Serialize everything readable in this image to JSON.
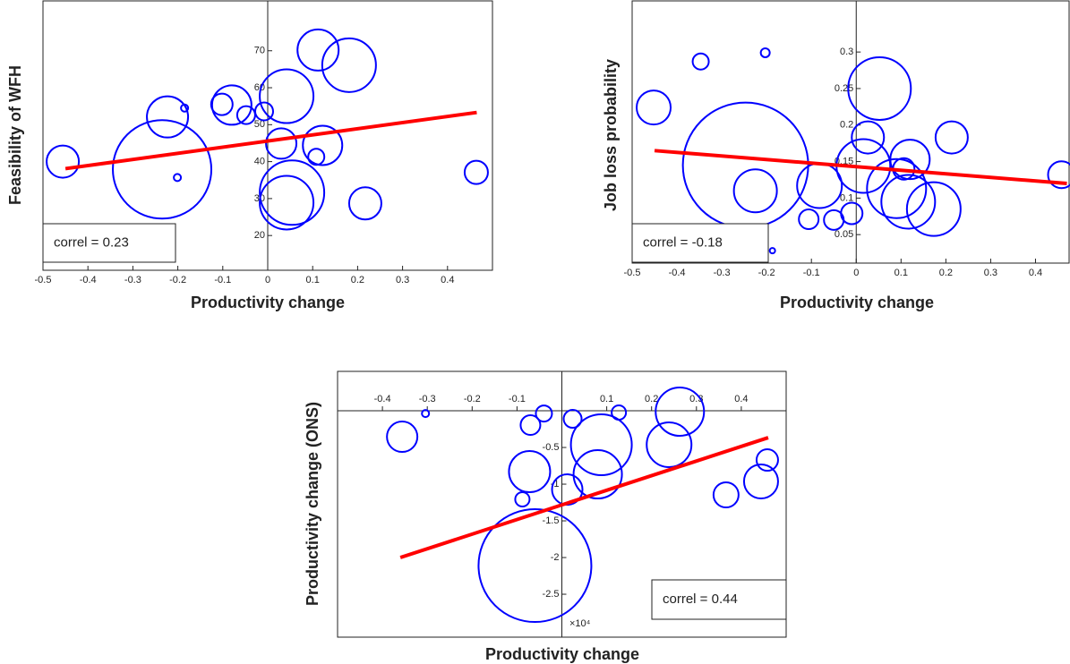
{
  "chart_data": [
    {
      "type": "scatter",
      "xlabel": "Productivity change",
      "ylabel": "Feasibility of WFH",
      "annotation": "correl = 0.23",
      "x": [
        -0.456,
        -0.235,
        -0.223,
        -0.185,
        -0.201,
        -0.102,
        -0.08,
        -0.048,
        -0.008,
        0.042,
        0.03,
        0.042,
        0.054,
        0.112,
        0.181,
        0.122,
        0.108,
        0.217,
        0.464,
        -0.347
      ],
      "y": [
        40.0,
        37.9,
        52.1,
        54.5,
        35.7,
        55.5,
        55.3,
        52.6,
        53.6,
        57.7,
        44.9,
        28.9,
        31.6,
        70.2,
        66.1,
        44.4,
        41.3,
        28.7,
        37.1,
        17.3
      ],
      "sizes": [
        18,
        55,
        23,
        4,
        4,
        12,
        22,
        10,
        10,
        30,
        17,
        30,
        36,
        23,
        30,
        22,
        9,
        18,
        13,
        9
      ],
      "fit_line": {
        "x": [
          -0.45,
          0.465
        ],
        "y": [
          38.1,
          53.3
        ]
      },
      "xlim": [
        -0.5,
        0.5
      ],
      "ylim": [
        10.6,
        83.5
      ],
      "xticks": [
        -0.5,
        -0.4,
        -0.3,
        -0.2,
        -0.1,
        0,
        0.1,
        0.2,
        0.3,
        0.4
      ],
      "yticks": [
        20,
        30,
        40,
        50,
        60,
        70
      ],
      "color": "#0000ff",
      "fit_color": "#ff0000"
    },
    {
      "type": "scatter",
      "xlabel": "Productivity change",
      "ylabel": "Job loss probability",
      "annotation": "correl = -0.18",
      "x": [
        -0.452,
        -0.347,
        -0.203,
        -0.187,
        -0.247,
        -0.225,
        0.052,
        0.026,
        0.016,
        -0.082,
        -0.106,
        -0.05,
        -0.01,
        0.09,
        0.106,
        0.12,
        0.116,
        0.173,
        0.213,
        0.458
      ],
      "y": [
        0.224,
        0.287,
        0.299,
        0.028,
        0.145,
        0.11,
        0.25,
        0.183,
        0.144,
        0.117,
        0.071,
        0.07,
        0.079,
        0.113,
        0.14,
        0.153,
        0.095,
        0.085,
        0.183,
        0.132
      ],
      "sizes": [
        19,
        9,
        5,
        3,
        70,
        24,
        35,
        18,
        30,
        25,
        11,
        11,
        12,
        33,
        12,
        22,
        30,
        30,
        18,
        15
      ],
      "fit_line": {
        "x": [
          -0.45,
          0.47
        ],
        "y": [
          0.165,
          0.12
        ]
      },
      "xlim": [
        -0.5,
        0.475
      ],
      "ylim": [
        0.011,
        0.37
      ],
      "xticks": [
        -0.5,
        -0.4,
        -0.3,
        -0.2,
        -0.1,
        0,
        0.1,
        0.2,
        0.3,
        0.4
      ],
      "yticks": [
        0.05,
        0.1,
        0.15,
        0.2,
        0.25,
        0.3
      ],
      "color": "#0000ff",
      "fit_color": "#ff0000"
    },
    {
      "type": "scatter",
      "xlabel": "Productivity change",
      "ylabel": "Productivity change (ONS)",
      "annotation": "correl = 0.44",
      "y_multiplier": "×10⁴",
      "x": [
        -0.356,
        -0.304,
        -0.07,
        -0.04,
        0.024,
        0.127,
        0.263,
        0.239,
        0.088,
        0.08,
        -0.072,
        -0.088,
        0.012,
        -0.06,
        0.366,
        0.444,
        0.458
      ],
      "y": [
        -0.354,
        -0.037,
        -0.195,
        -0.037,
        -0.11,
        -0.024,
        -0.012,
        -0.463,
        -0.463,
        -0.866,
        -0.829,
        -1.207,
        -1.073,
        -2.11,
        -1.146,
        -0.963,
        -0.671
      ],
      "sizes": [
        17,
        4,
        11,
        9,
        10,
        8,
        27,
        25,
        34,
        27,
        23,
        8,
        17,
        63,
        14,
        19,
        12
      ],
      "fit_line": {
        "x": [
          -0.36,
          0.46
        ],
        "y": [
          -2.0,
          -0.366
        ]
      },
      "xlim": [
        -0.5,
        0.5
      ],
      "ylim": [
        -3.085,
        0.537
      ],
      "xticks": [
        -0.4,
        -0.3,
        -0.2,
        -0.1,
        0.1,
        0.2,
        0.3,
        0.4
      ],
      "yticks": [
        -2.5,
        -2,
        -1.5,
        -1,
        -0.5
      ],
      "color": "#0000ff",
      "fit_color": "#ff0000"
    }
  ]
}
